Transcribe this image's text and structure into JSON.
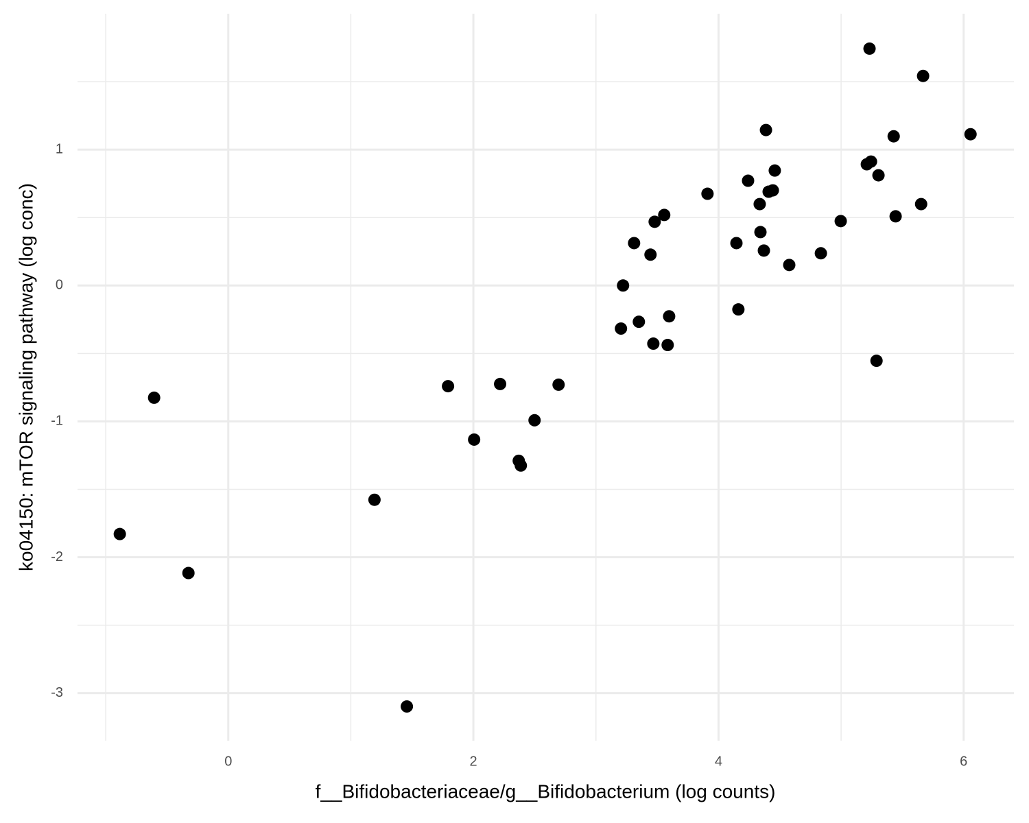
{
  "chart_data": {
    "type": "scatter",
    "x_label": "f__Bifidobacteriaceae/g__Bifidobacterium (log counts)",
    "y_label": "ko04150: mTOR signaling pathway (log conc)",
    "color": "#000000",
    "xlim": [
      -1.23,
      6.41
    ],
    "ylim": [
      -3.35,
      2.0
    ],
    "xticks": [
      0,
      2,
      4,
      6
    ],
    "yticks": [
      -3,
      -2,
      -1,
      0,
      1
    ],
    "x_minor_grid": [
      -1,
      1,
      3,
      5
    ],
    "y_minor_grid": [
      -2.5,
      -1.5,
      -0.5,
      0.5,
      1.5
    ],
    "grid": true,
    "x": [
      5.232,
      5.669,
      4.387,
      5.429,
      6.056,
      5.21,
      5.244,
      5.305,
      4.459,
      4.241,
      3.91,
      4.443,
      4.409,
      4.336,
      3.557,
      3.479,
      4.997,
      5.653,
      5.445,
      3.311,
      4.146,
      4.342,
      4.37,
      3.445,
      4.835,
      4.577,
      3.221,
      4.162,
      3.597,
      3.35,
      3.204,
      3.468,
      3.585,
      5.289,
      -0.605,
      1.793,
      2.218,
      2.695,
      2.499,
      2.006,
      2.37,
      2.387,
      1.193,
      -0.885,
      -0.325,
      1.457
    ],
    "values": [
      1.743,
      1.542,
      1.144,
      1.098,
      1.113,
      0.892,
      0.912,
      0.811,
      0.846,
      0.771,
      0.675,
      0.7,
      0.69,
      0.599,
      0.519,
      0.469,
      0.474,
      0.599,
      0.509,
      0.312,
      0.312,
      0.393,
      0.257,
      0.227,
      0.237,
      0.151,
      0.0,
      -0.176,
      -0.227,
      -0.267,
      -0.317,
      -0.428,
      -0.438,
      -0.554,
      -0.826,
      -0.741,
      -0.725,
      -0.73,
      -0.992,
      -1.134,
      -1.29,
      -1.325,
      -1.577,
      -1.829,
      -2.116,
      -3.098
    ]
  }
}
